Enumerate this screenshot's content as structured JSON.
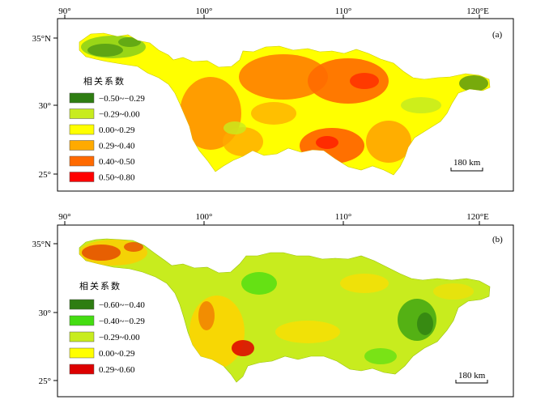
{
  "panels": [
    {
      "label": "(a)",
      "lon_ticks": [
        "90°",
        "100°",
        "110°",
        "120°E"
      ],
      "lat_ticks": [
        "35°N",
        "30°",
        "25°"
      ],
      "legend_title": "相关系数",
      "legend": [
        {
          "color": "#2e7d12",
          "label": "−0.50~−0.29"
        },
        {
          "color": "#c8ec1e",
          "label": "−0.29~0.00"
        },
        {
          "color": "#ffff00",
          "label": "0.00~0.29"
        },
        {
          "color": "#ffaa00",
          "label": "0.29~0.40"
        },
        {
          "color": "#ff6a00",
          "label": "0.40~0.50"
        },
        {
          "color": "#ff0000",
          "label": "0.50~0.80"
        }
      ],
      "scale_bar": "180 km"
    },
    {
      "label": "(b)",
      "lon_ticks": [
        "90°",
        "100°",
        "110°",
        "120°E"
      ],
      "lat_ticks": [
        "35°N",
        "30°",
        "25°"
      ],
      "legend_title": "相关系数",
      "legend": [
        {
          "color": "#2e7d12",
          "label": "−0.60~−0.40"
        },
        {
          "color": "#44dd11",
          "label": "−0.40~−0.29"
        },
        {
          "color": "#c8ec1e",
          "label": "−0.29~0.00"
        },
        {
          "color": "#ffff00",
          "label": "0.00~0.29"
        },
        {
          "color": "#dd0000",
          "label": "0.29~0.60"
        }
      ],
      "scale_bar": "180 km"
    }
  ]
}
